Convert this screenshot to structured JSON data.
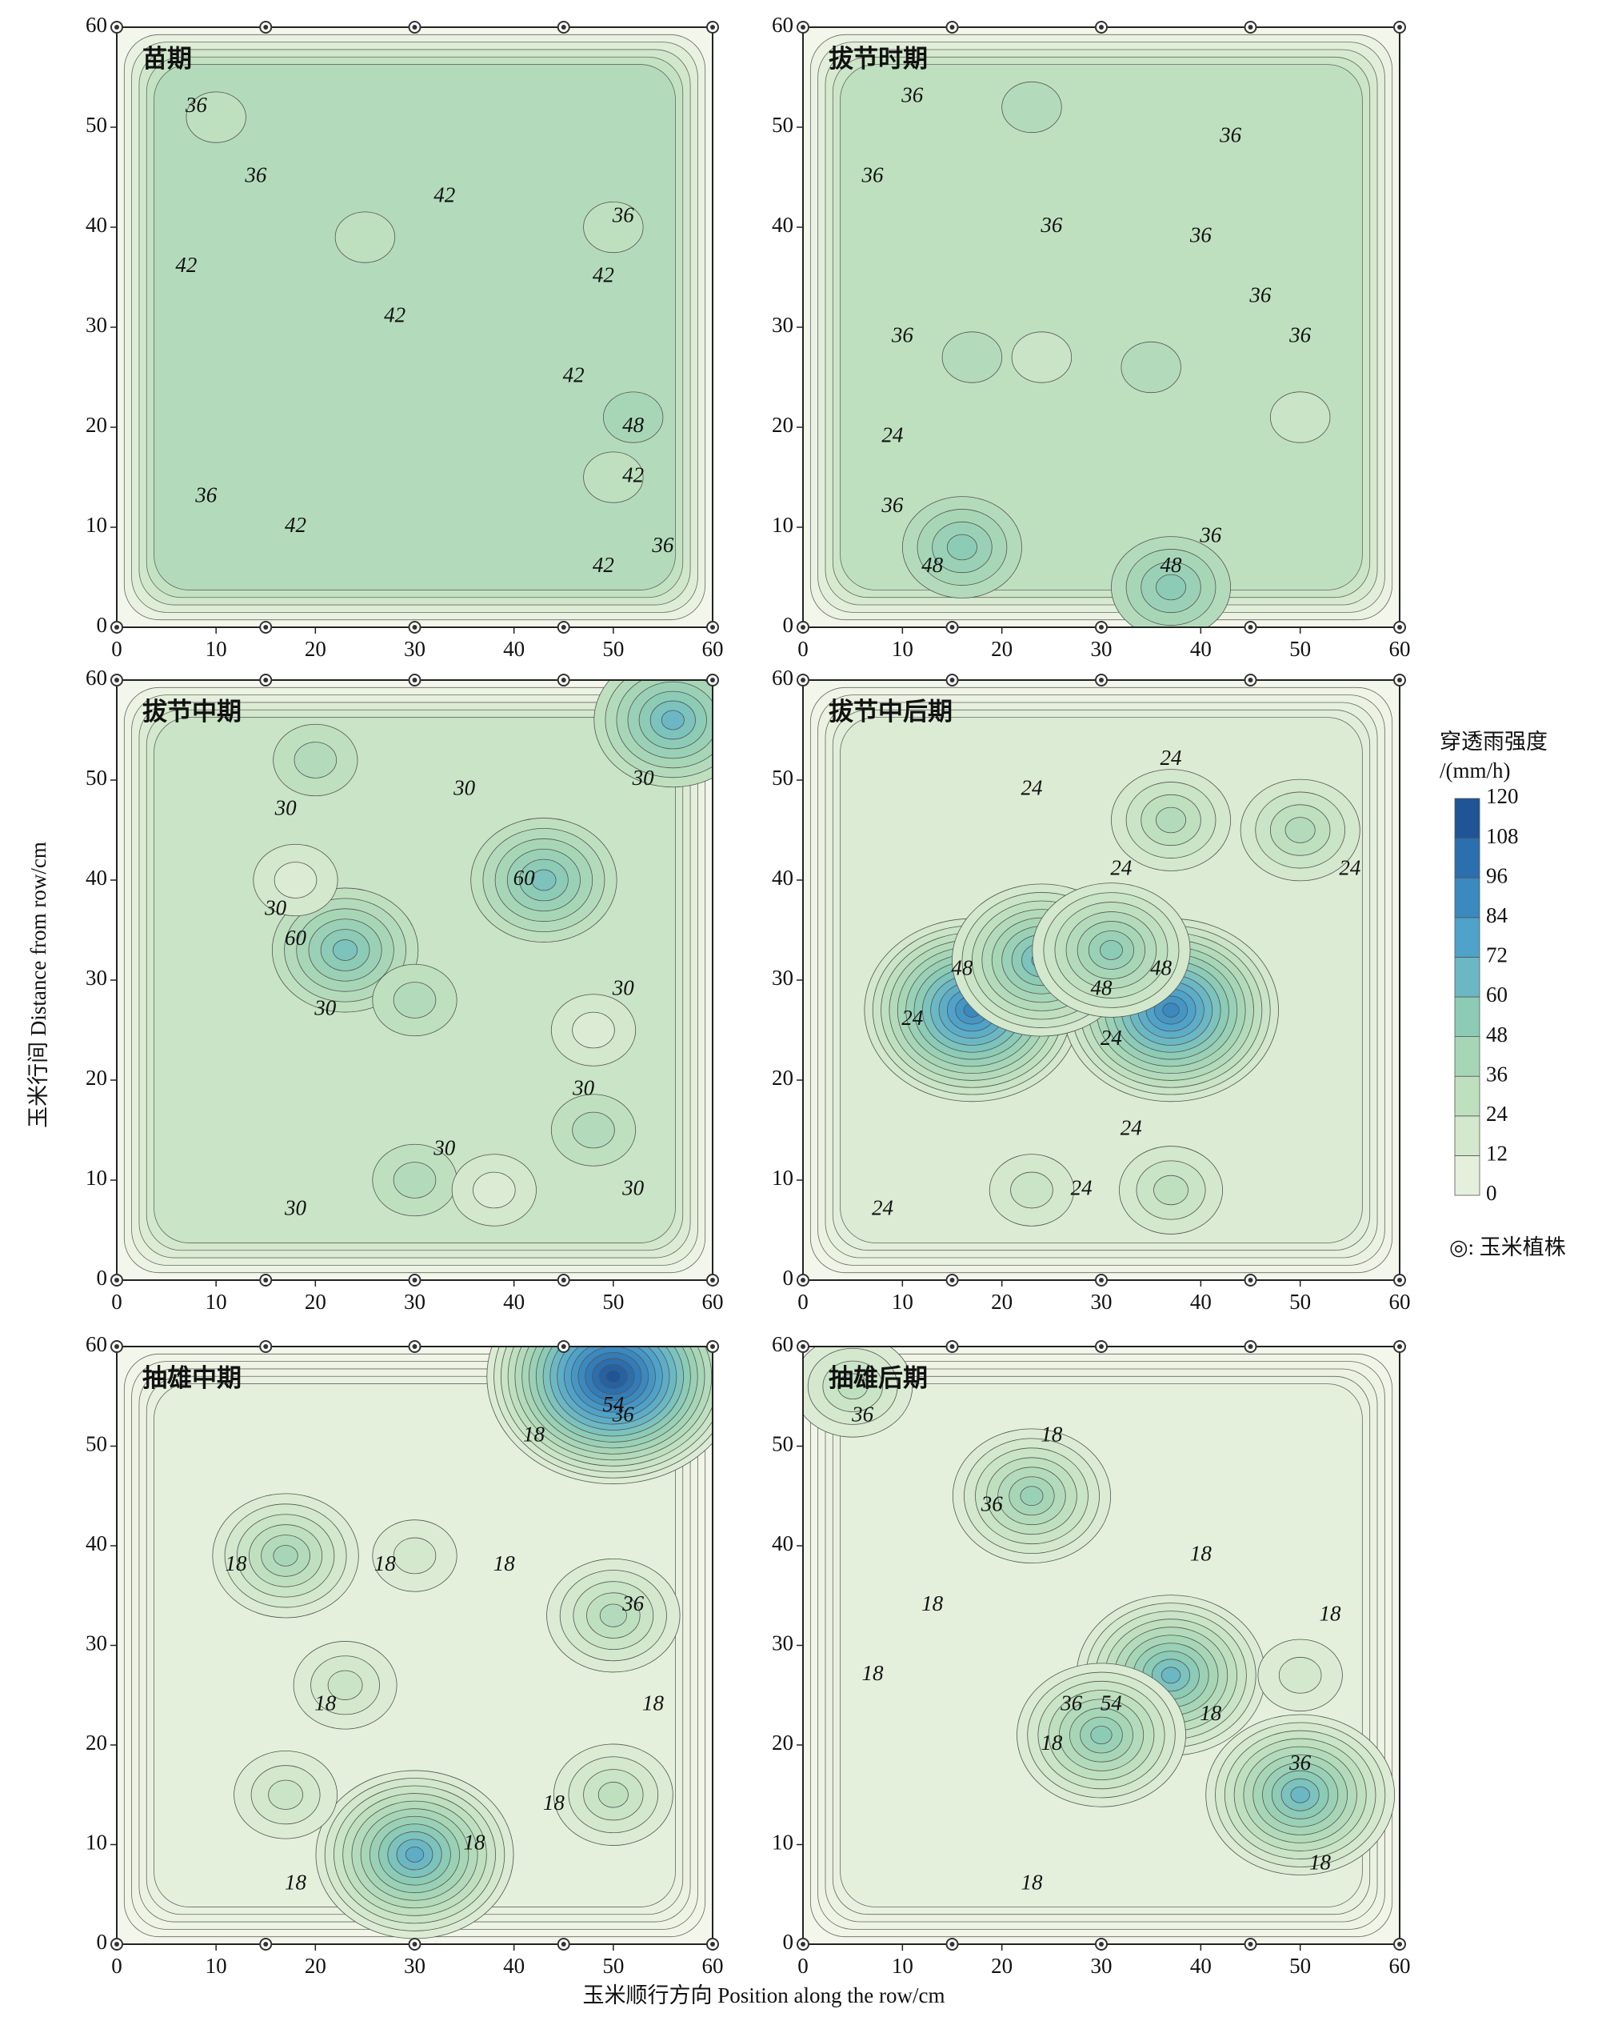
{
  "chart_data": {
    "type": "contour",
    "y_label": "玉米行间 Distance from row/cm",
    "x_label": "玉米顺行方向 Position along the row/cm",
    "xlim": [
      0,
      60
    ],
    "ylim": [
      0,
      60
    ],
    "xticks": [
      0,
      10,
      20,
      30,
      40,
      50,
      60
    ],
    "yticks": [
      0,
      10,
      20,
      30,
      40,
      50,
      60
    ],
    "colorbar": {
      "title_1": "穿透雨强度",
      "title_2": "/(mm/h)",
      "ticks": [
        0,
        12,
        24,
        36,
        48,
        60,
        72,
        84,
        96,
        108,
        120
      ],
      "colors": [
        "#f3f6ea",
        "#e5f0dc",
        "#d3e8cc",
        "#bfe0bf",
        "#a7d6b6",
        "#8ccbb6",
        "#6bb8c4",
        "#4fa2c9",
        "#3a89bf",
        "#2b6fae",
        "#1f5597"
      ]
    },
    "legend": "◎: 玉米植株",
    "plant_x": [
      0,
      15,
      30,
      45,
      60
    ],
    "plant_y": [
      0,
      60
    ],
    "panels": [
      {
        "title": "苗期",
        "base": 42,
        "hotspots": [
          {
            "x": 52,
            "y": 21,
            "peak": 48
          },
          {
            "x": 50,
            "y": 15,
            "peak": 36
          },
          {
            "x": 10,
            "y": 51,
            "peak": 36
          },
          {
            "x": 50,
            "y": 40,
            "peak": 36
          },
          {
            "x": 25,
            "y": 39,
            "peak": 36
          }
        ],
        "contour_labels": [
          {
            "value": 36,
            "x": 8,
            "y": 52
          },
          {
            "value": 36,
            "x": 14,
            "y": 45
          },
          {
            "value": 36,
            "x": 9,
            "y": 13
          },
          {
            "value": 42,
            "x": 33,
            "y": 43
          },
          {
            "value": 42,
            "x": 7,
            "y": 36
          },
          {
            "value": 42,
            "x": 28,
            "y": 31
          },
          {
            "value": 42,
            "x": 46,
            "y": 25
          },
          {
            "value": 42,
            "x": 18,
            "y": 10
          },
          {
            "value": 36,
            "x": 51,
            "y": 41
          },
          {
            "value": 42,
            "x": 49,
            "y": 35
          },
          {
            "value": 48,
            "x": 52,
            "y": 20
          },
          {
            "value": 42,
            "x": 52,
            "y": 15
          },
          {
            "value": 36,
            "x": 55,
            "y": 8
          },
          {
            "value": 42,
            "x": 49,
            "y": 6
          }
        ]
      },
      {
        "title": "拔节时期",
        "base": 36,
        "hotspots": [
          {
            "x": 16,
            "y": 8,
            "peak": 60
          },
          {
            "x": 37,
            "y": 4,
            "peak": 60
          },
          {
            "x": 23,
            "y": 52,
            "peak": 42
          },
          {
            "x": 35,
            "y": 26,
            "peak": 42
          },
          {
            "x": 17,
            "y": 27,
            "peak": 42
          },
          {
            "x": 50,
            "y": 21,
            "peak": 30
          },
          {
            "x": 24,
            "y": 27,
            "peak": 30
          }
        ],
        "contour_labels": [
          {
            "value": 36,
            "x": 11,
            "y": 53
          },
          {
            "value": 36,
            "x": 43,
            "y": 49
          },
          {
            "value": 36,
            "x": 7,
            "y": 45
          },
          {
            "value": 36,
            "x": 25,
            "y": 40
          },
          {
            "value": 36,
            "x": 40,
            "y": 39
          },
          {
            "value": 36,
            "x": 46,
            "y": 33
          },
          {
            "value": 36,
            "x": 50,
            "y": 29
          },
          {
            "value": 36,
            "x": 10,
            "y": 29
          },
          {
            "value": 36,
            "x": 9,
            "y": 12
          },
          {
            "value": 36,
            "x": 41,
            "y": 9
          },
          {
            "value": 24,
            "x": 9,
            "y": 19
          },
          {
            "value": 48,
            "x": 13,
            "y": 6
          },
          {
            "value": 48,
            "x": 37,
            "y": 6
          }
        ]
      },
      {
        "title": "拔节中期",
        "base": 30,
        "hotspots": [
          {
            "x": 23,
            "y": 33,
            "peak": 66
          },
          {
            "x": 43,
            "y": 40,
            "peak": 66
          },
          {
            "x": 56,
            "y": 56,
            "peak": 72
          },
          {
            "x": 30,
            "y": 28,
            "peak": 42
          },
          {
            "x": 48,
            "y": 15,
            "peak": 42
          },
          {
            "x": 30,
            "y": 10,
            "peak": 42
          },
          {
            "x": 20,
            "y": 52,
            "peak": 42
          },
          {
            "x": 18,
            "y": 40,
            "peak": 18
          },
          {
            "x": 48,
            "y": 25,
            "peak": 18
          },
          {
            "x": 38,
            "y": 9,
            "peak": 18
          }
        ],
        "contour_labels": [
          {
            "value": 30,
            "x": 17,
            "y": 47
          },
          {
            "value": 30,
            "x": 35,
            "y": 49
          },
          {
            "value": 30,
            "x": 53,
            "y": 50
          },
          {
            "value": 30,
            "x": 16,
            "y": 37
          },
          {
            "value": 30,
            "x": 21,
            "y": 27
          },
          {
            "value": 30,
            "x": 51,
            "y": 29
          },
          {
            "value": 30,
            "x": 47,
            "y": 19
          },
          {
            "value": 30,
            "x": 33,
            "y": 13
          },
          {
            "value": 30,
            "x": 52,
            "y": 9
          },
          {
            "value": 30,
            "x": 18,
            "y": 7
          },
          {
            "value": 60,
            "x": 18,
            "y": 34
          },
          {
            "value": 60,
            "x": 41,
            "y": 40
          }
        ]
      },
      {
        "title": "拔节中后期",
        "base": 18,
        "hotspots": [
          {
            "x": 17,
            "y": 27,
            "peak": 96
          },
          {
            "x": 37,
            "y": 27,
            "peak": 96
          },
          {
            "x": 24,
            "y": 32,
            "peak": 72
          },
          {
            "x": 31,
            "y": 33,
            "peak": 60
          },
          {
            "x": 37,
            "y": 46,
            "peak": 42
          },
          {
            "x": 50,
            "y": 45,
            "peak": 42
          },
          {
            "x": 37,
            "y": 9,
            "peak": 36
          },
          {
            "x": 23,
            "y": 9,
            "peak": 30
          }
        ],
        "contour_labels": [
          {
            "value": 24,
            "x": 37,
            "y": 52
          },
          {
            "value": 24,
            "x": 23,
            "y": 49
          },
          {
            "value": 24,
            "x": 32,
            "y": 41
          },
          {
            "value": 24,
            "x": 55,
            "y": 41
          },
          {
            "value": 24,
            "x": 11,
            "y": 26
          },
          {
            "value": 24,
            "x": 31,
            "y": 24
          },
          {
            "value": 24,
            "x": 33,
            "y": 15
          },
          {
            "value": 24,
            "x": 28,
            "y": 9
          },
          {
            "value": 24,
            "x": 8,
            "y": 7
          },
          {
            "value": 48,
            "x": 16,
            "y": 31
          },
          {
            "value": 48,
            "x": 36,
            "y": 31
          },
          {
            "value": 48,
            "x": 30,
            "y": 29
          }
        ]
      },
      {
        "title": "抽雄中期",
        "base": 12,
        "hotspots": [
          {
            "x": 50,
            "y": 57,
            "peak": 120
          },
          {
            "x": 17,
            "y": 39,
            "peak": 48
          },
          {
            "x": 30,
            "y": 9,
            "peak": 78
          },
          {
            "x": 50,
            "y": 33,
            "peak": 42
          },
          {
            "x": 50,
            "y": 15,
            "peak": 36
          },
          {
            "x": 17,
            "y": 15,
            "peak": 30
          },
          {
            "x": 23,
            "y": 26,
            "peak": 30
          },
          {
            "x": 30,
            "y": 39,
            "peak": 24
          }
        ],
        "contour_labels": [
          {
            "value": 18,
            "x": 42,
            "y": 51
          },
          {
            "value": 18,
            "x": 12,
            "y": 38
          },
          {
            "value": 18,
            "x": 27,
            "y": 38
          },
          {
            "value": 18,
            "x": 39,
            "y": 38
          },
          {
            "value": 18,
            "x": 21,
            "y": 24
          },
          {
            "value": 18,
            "x": 44,
            "y": 14
          },
          {
            "value": 18,
            "x": 36,
            "y": 10
          },
          {
            "value": 18,
            "x": 18,
            "y": 6
          },
          {
            "value": 18,
            "x": 54,
            "y": 24
          },
          {
            "value": 36,
            "x": 52,
            "y": 34
          },
          {
            "value": 36,
            "x": 51,
            "y": 53
          },
          {
            "value": 54,
            "x": 50,
            "y": 54
          }
        ]
      },
      {
        "title": "抽雄后期",
        "base": 12,
        "hotspots": [
          {
            "x": 23,
            "y": 45,
            "peak": 54
          },
          {
            "x": 37,
            "y": 27,
            "peak": 72
          },
          {
            "x": 30,
            "y": 21,
            "peak": 60
          },
          {
            "x": 50,
            "y": 15,
            "peak": 72
          },
          {
            "x": 5,
            "y": 56,
            "peak": 36
          },
          {
            "x": 50,
            "y": 27,
            "peak": 24
          }
        ],
        "contour_labels": [
          {
            "value": 18,
            "x": 25,
            "y": 51
          },
          {
            "value": 18,
            "x": 40,
            "y": 39
          },
          {
            "value": 18,
            "x": 13,
            "y": 34
          },
          {
            "value": 18,
            "x": 53,
            "y": 33
          },
          {
            "value": 18,
            "x": 7,
            "y": 27
          },
          {
            "value": 18,
            "x": 41,
            "y": 23
          },
          {
            "value": 18,
            "x": 25,
            "y": 20
          },
          {
            "value": 18,
            "x": 23,
            "y": 6
          },
          {
            "value": 18,
            "x": 52,
            "y": 8
          },
          {
            "value": 36,
            "x": 6,
            "y": 53
          },
          {
            "value": 36,
            "x": 19,
            "y": 44
          },
          {
            "value": 36,
            "x": 27,
            "y": 24
          },
          {
            "value": 36,
            "x": 50,
            "y": 18
          },
          {
            "value": 54,
            "x": 31,
            "y": 24
          }
        ]
      }
    ]
  }
}
